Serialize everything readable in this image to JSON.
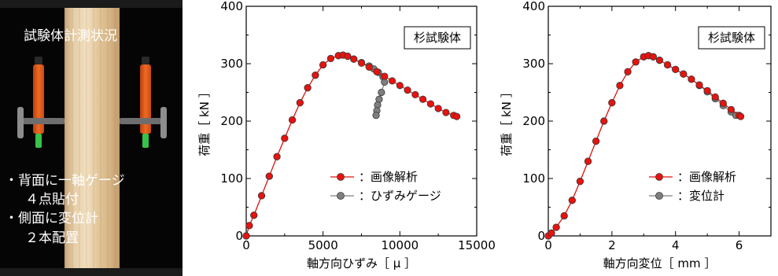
{
  "photo": {
    "title": "試験体計測状況",
    "note_line1": "・背面に一軸ゲージ",
    "note_line2": "４点貼付",
    "note_line3": "・側面に変位計",
    "note_line4": "２本配置"
  },
  "chart_data": [
    {
      "type": "scatter",
      "title": "杉試験体",
      "xlabel": "軸方向ひずみ［ μ ］",
      "ylabel": "荷重［ kN ］",
      "xlim": [
        0,
        15000
      ],
      "ylim": [
        0,
        400
      ],
      "xticks": [
        0,
        5000,
        10000,
        15000
      ],
      "yticks": [
        0,
        100,
        200,
        300,
        400
      ],
      "grid": false,
      "legend_position": "lower-right",
      "series": [
        {
          "name": "：画像解析",
          "color": "#e8120e",
          "x": [
            0,
            200,
            500,
            1000,
            1500,
            2000,
            2500,
            3000,
            3500,
            4000,
            4500,
            5000,
            5500,
            6000,
            6300,
            6600,
            7000,
            7500,
            8000,
            8500,
            9000,
            9500,
            10000,
            10500,
            11000,
            11500,
            12000,
            12500,
            13000,
            13500,
            13700
          ],
          "y": [
            0,
            18,
            36,
            70,
            104,
            138,
            170,
            202,
            232,
            258,
            280,
            298,
            309,
            314,
            315,
            313,
            308,
            301,
            294,
            286,
            278,
            270,
            262,
            254,
            246,
            238,
            230,
            222,
            215,
            210,
            208
          ]
        },
        {
          "name": "：ひずみゲージ",
          "color": "#7f7f7f",
          "x": [
            0,
            200,
            500,
            1000,
            1500,
            2000,
            2500,
            3000,
            3500,
            4000,
            4500,
            5000,
            5500,
            6000,
            6300,
            6600,
            7000,
            7500,
            8000,
            8300,
            8600,
            8900,
            9000,
            8800,
            8650,
            8550,
            8500,
            8450
          ],
          "y": [
            0,
            18,
            36,
            70,
            104,
            138,
            170,
            202,
            232,
            258,
            280,
            298,
            309,
            314,
            315,
            313,
            308,
            302,
            296,
            291,
            285,
            277,
            268,
            250,
            238,
            228,
            218,
            210
          ]
        }
      ]
    },
    {
      "type": "scatter",
      "title": "杉試験体",
      "xlabel": "軸方向変位［ mm ］",
      "ylabel": "荷重［ kN ］",
      "xlim": [
        0,
        7
      ],
      "ylim": [
        0,
        400
      ],
      "xticks": [
        0,
        2,
        4,
        6
      ],
      "yticks": [
        0,
        100,
        200,
        300,
        400
      ],
      "grid": false,
      "legend_position": "lower-right",
      "series": [
        {
          "name": "：画像解析",
          "color": "#e8120e",
          "x": [
            0,
            0.1,
            0.25,
            0.5,
            0.75,
            1.0,
            1.25,
            1.5,
            1.75,
            2.0,
            2.25,
            2.5,
            2.75,
            3.0,
            3.15,
            3.3,
            3.5,
            3.75,
            4.0,
            4.25,
            4.5,
            4.75,
            5.0,
            5.25,
            5.5,
            5.75,
            6.0,
            6.05
          ],
          "y": [
            0,
            5,
            15,
            35,
            62,
            95,
            130,
            165,
            200,
            232,
            262,
            286,
            303,
            312,
            314,
            312,
            306,
            298,
            290,
            282,
            273,
            263,
            253,
            242,
            231,
            220,
            210,
            208
          ]
        },
        {
          "name": "：変位計",
          "color": "#7f7f7f",
          "x": [
            0,
            0.1,
            0.25,
            0.5,
            0.75,
            1.0,
            1.25,
            1.5,
            1.75,
            2.0,
            2.25,
            2.5,
            2.75,
            3.0,
            3.15,
            3.3,
            3.5,
            3.75,
            4.0,
            4.25,
            4.5,
            4.75,
            5.0,
            5.25,
            5.5,
            5.75,
            5.9
          ],
          "y": [
            0,
            5,
            15,
            35,
            62,
            95,
            130,
            165,
            200,
            232,
            262,
            286,
            303,
            312,
            314,
            312,
            306,
            298,
            290,
            282,
            273,
            262,
            251,
            239,
            227,
            216,
            210
          ]
        }
      ]
    }
  ]
}
